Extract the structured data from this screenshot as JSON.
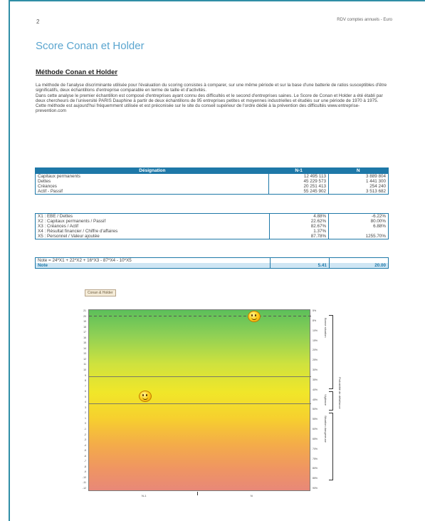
{
  "page": {
    "number": "2",
    "header_right": "RDV comptes annuels - Euro",
    "title": "Score Conan et Holder",
    "subtitle": "Méthode Conan et Holder"
  },
  "intro": [
    "La méthode de l'analyse discriminante utilisée pour l'évaluation du scoring consistes à comparer, sur une même période et sur la base d'une batterie de ratios susceptibles d'être significatifs, deux échantillons d'entreprise comparable en terme de taille et d'activités.",
    "Dans cette analyse le premier échantillon est composé d'entreprises ayant connu des difficultés et le second d'entreprises saines. Le Score de Conan et Holder a été établi par deux chercheurs de l'université PARIS Dauphine à partir de deux échantillons de 95 entreprises petites et moyennes industrielles et étudiés sur une période de 1970 à 1975.",
    "Cette méthode est aujourd'hui fréquemment utilisée et est préconisée sur le site du conseil supérieur de l'ordre dédié à la prévention des difficultés www.entreprise-prevention.com"
  ],
  "table1": {
    "headers": [
      "Désignation",
      "N-1",
      "N"
    ],
    "rows": [
      [
        "Capitaux permanents",
        "12 495 113",
        "3 889 804"
      ],
      [
        "Dettes",
        "45 229 573",
        "1 441 300"
      ],
      [
        "Créances",
        "20 251 413",
        "254 240"
      ],
      [
        "Actif - Passif",
        "55 245 902",
        "3 513 682"
      ]
    ]
  },
  "table2": {
    "rows": [
      [
        "X1 : EBE / Dettes",
        "4.88%",
        "-6.22%"
      ],
      [
        "X2 : Capitaux permanents / Passif",
        "22.62%",
        "80.00%"
      ],
      [
        "X3 : Créances / Actif",
        "82.67%",
        "6.88%"
      ],
      [
        "X4 : Résultat financier / Chiffre d'affaires",
        "1.37%",
        ""
      ],
      [
        "X5 : Personnel / Valeur ajoutée",
        "87.78%",
        "1255.70%"
      ]
    ]
  },
  "table3": {
    "formula": "Note = 24*X1 + 22*X2 + 16*X3 - 87*X4 - 10*X5",
    "note_label": "Note",
    "note_n1": "5.41",
    "note_n": "20.00"
  },
  "chart_data": {
    "type": "scatter",
    "title": "Conan & Holder",
    "categories": [
      "N-1",
      "N"
    ],
    "points": [
      {
        "x": "N-1",
        "y": 5.41
      },
      {
        "x": "N",
        "y": 20.0
      }
    ],
    "reference_lines": [
      20,
      9,
      4
    ],
    "ylim": [
      -12,
      21
    ],
    "left_ticks": [
      "21",
      "20",
      "19",
      "18",
      "17",
      "16",
      "15",
      "14",
      "13",
      "12",
      "11",
      "10",
      "9",
      "8",
      "7",
      "6",
      "5",
      "4",
      "3",
      "2",
      "1",
      "0",
      "-1",
      "-2",
      "-3",
      "-4",
      "-5",
      "-6",
      "-7",
      "-8",
      "-9",
      "-10",
      "-11",
      "-12"
    ],
    "right_ticks": [
      "5%",
      "8%",
      "10%",
      "15%",
      "20%",
      "25%",
      "30%",
      "35%",
      "40%",
      "45%",
      "50%",
      "55%",
      "60%",
      "65%",
      "70%",
      "75%",
      "80%",
      "85%",
      "90%"
    ],
    "right_annotations": [
      "Bonne situation",
      "Vigilance",
      "Situation dangereuse"
    ],
    "right_axis_label": "Probabilité de défaillance",
    "colors": {
      "top": "#5cbf5a",
      "middle": "#f1e629",
      "bottom": "#e88878"
    }
  }
}
